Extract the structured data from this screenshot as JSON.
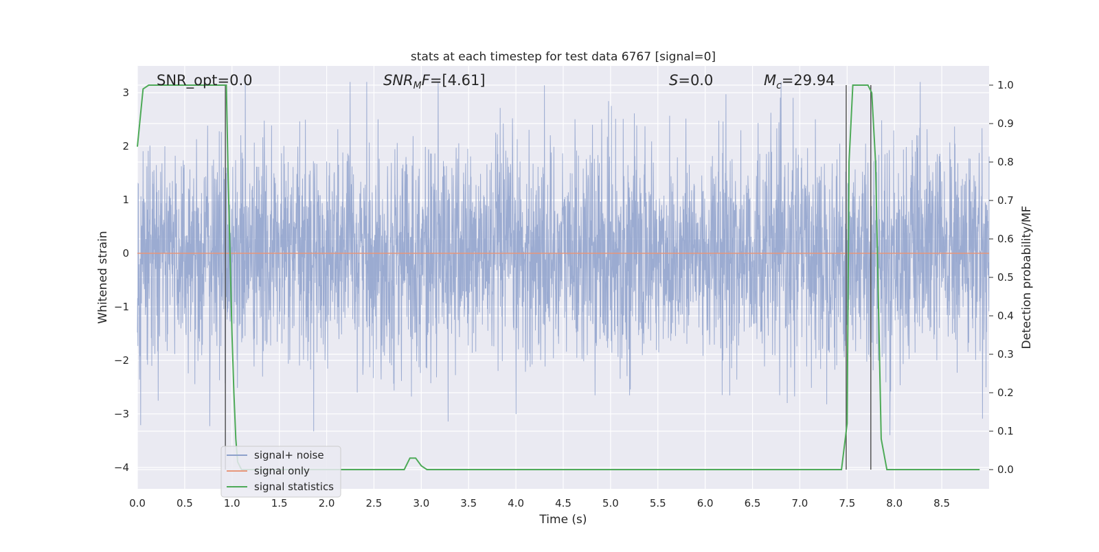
{
  "chart_data": {
    "type": "line",
    "title": "stats at each timestep for test data 6767 [signal=0]",
    "xlabel": "Time (s)",
    "ylabel": "Whitened strain",
    "ylabel_right": "Detection probability/MF",
    "xlim": [
      0,
      9
    ],
    "ylim": [
      -4.4,
      3.5
    ],
    "ylim_right": [
      -0.05,
      1.05
    ],
    "x_ticks": [
      "0.0",
      "0.5",
      "1.0",
      "1.5",
      "2.0",
      "2.5",
      "3.0",
      "3.5",
      "4.0",
      "4.5",
      "5.0",
      "5.5",
      "6.0",
      "6.5",
      "7.0",
      "7.5",
      "8.0",
      "8.5"
    ],
    "y_ticks": [
      "3",
      "2",
      "1",
      "0",
      "−1",
      "−2",
      "−3",
      "−4"
    ],
    "y_ticks_right": [
      "1.0",
      "0.9",
      "0.8",
      "0.7",
      "0.6",
      "0.5",
      "0.4",
      "0.3",
      "0.2",
      "0.1",
      "0.0"
    ],
    "grid": true,
    "legend_position": "lower-left",
    "annotations": {
      "snr_opt": "SNR_opt=0.0",
      "snr_mf_var": "SNR",
      "snr_mf_sub": "M",
      "snr_mf_mid": "F",
      "snr_mf_val": "=[4.61]",
      "s_var": "S",
      "s_val": "=0.0",
      "mc_var": "M",
      "mc_sub": "c",
      "mc_val": "=29.94"
    },
    "series": [
      {
        "name": "signal+ noise",
        "color": "#8da0cb",
        "axis": "left",
        "description_kind": "noise",
        "range_approx": [
          -3.5,
          3.2
        ]
      },
      {
        "name": "signal only",
        "color": "#e7967a",
        "axis": "left",
        "constant": 0.0
      },
      {
        "name": "signal statistics",
        "color": "#4daa57",
        "axis": "right",
        "x": [
          0.0,
          0.06,
          0.12,
          0.94,
          0.96,
          1.0,
          1.02,
          1.04,
          1.06,
          1.1,
          2.82,
          2.88,
          2.94,
          3.0,
          3.06,
          3.1,
          7.44,
          7.5,
          7.52,
          7.56,
          7.72,
          7.76,
          7.8,
          7.86,
          7.92,
          7.98,
          8.9
        ],
        "y": [
          0.84,
          0.99,
          1.0,
          1.0,
          0.75,
          0.35,
          0.2,
          0.08,
          0.02,
          0.0,
          0.0,
          0.03,
          0.03,
          0.01,
          0.0,
          0.0,
          0.0,
          0.12,
          0.8,
          1.0,
          1.0,
          0.98,
          0.8,
          0.08,
          0.0,
          0.0,
          0.0
        ]
      }
    ],
    "vertical_lines_x": [
      0.93,
      7.49,
      7.75
    ]
  }
}
